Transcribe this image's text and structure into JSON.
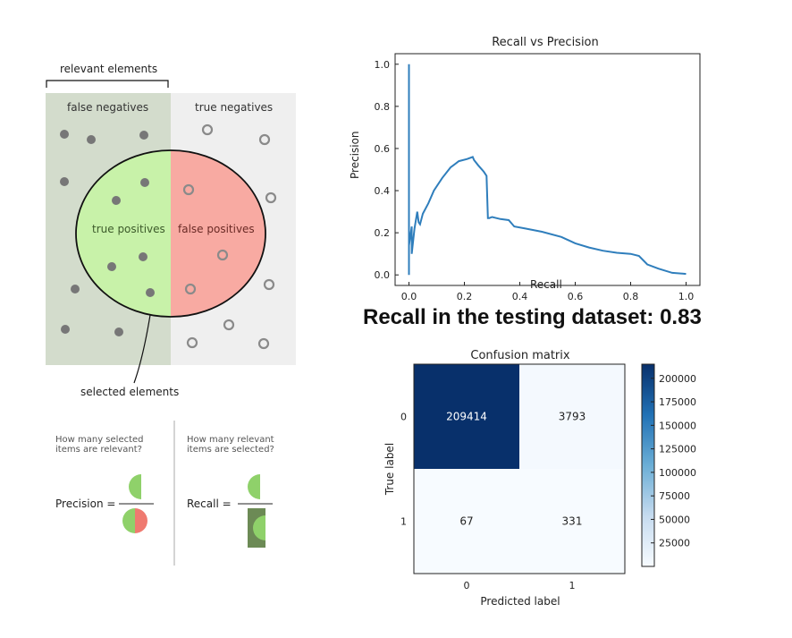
{
  "left_diagram": {
    "relevant_label": "relevant elements",
    "false_negatives": "false negatives",
    "true_negatives": "true negatives",
    "true_positives": "true positives",
    "false_positives": "false positives",
    "selected_label": "selected elements",
    "colors": {
      "relevant_bg": "#d3dccc",
      "nonrelevant_bg": "#efefef",
      "tp_fill": "#c8f2a9",
      "fp_fill": "#f8aaa2",
      "dot": "#777777",
      "ring": "#8a8a8a"
    },
    "formula": {
      "precision_question": "How many selected items are relevant?",
      "recall_question": "How many relevant items are selected?",
      "precision_label": "Precision =",
      "recall_label": "Recall ="
    }
  },
  "headline": "Recall in the testing dataset: 0.83",
  "chart_data": [
    {
      "type": "line",
      "title": "Recall vs Precision",
      "xlabel": "Recall",
      "ylabel": "Precision",
      "xlim": [
        -0.05,
        1.05
      ],
      "ylim": [
        -0.05,
        1.05
      ],
      "xticks": [
        "0.0",
        "0.2",
        "0.4",
        "0.6",
        "0.8",
        "1.0"
      ],
      "yticks": [
        "0.0",
        "0.2",
        "0.4",
        "0.6",
        "0.8",
        "1.0"
      ],
      "grid": false,
      "color": "#2f7ebc",
      "x": [
        0.0,
        0.0,
        0.0,
        0.0,
        0.01,
        0.01,
        0.02,
        0.03,
        0.035,
        0.04,
        0.05,
        0.07,
        0.09,
        0.12,
        0.15,
        0.18,
        0.21,
        0.23,
        0.235,
        0.25,
        0.27,
        0.28,
        0.285,
        0.29,
        0.3,
        0.33,
        0.36,
        0.38,
        0.42,
        0.48,
        0.55,
        0.6,
        0.65,
        0.7,
        0.75,
        0.8,
        0.83,
        0.86,
        0.9,
        0.95,
        1.0
      ],
      "y": [
        0.0,
        1.0,
        0.02,
        0.14,
        0.23,
        0.1,
        0.22,
        0.3,
        0.25,
        0.24,
        0.29,
        0.34,
        0.4,
        0.46,
        0.51,
        0.54,
        0.55,
        0.56,
        0.545,
        0.52,
        0.49,
        0.47,
        0.27,
        0.27,
        0.275,
        0.265,
        0.26,
        0.23,
        0.22,
        0.205,
        0.18,
        0.15,
        0.13,
        0.115,
        0.105,
        0.1,
        0.09,
        0.05,
        0.03,
        0.01,
        0.005
      ]
    },
    {
      "type": "heatmap",
      "title": "Confusion matrix",
      "xlabel": "Predicted label",
      "ylabel": "True label",
      "x_categories": [
        "0",
        "1"
      ],
      "y_categories": [
        "0",
        "1"
      ],
      "values": [
        [
          209414,
          3793
        ],
        [
          67,
          331
        ]
      ],
      "colorbar_ticks": [
        25000,
        50000,
        75000,
        100000,
        125000,
        150000,
        175000,
        200000
      ],
      "colorbar_tick_labels": [
        "25000",
        "50000",
        "75000",
        "100000",
        "125000",
        "150000",
        "175000",
        "200000"
      ],
      "colormap": "Blues",
      "vmin": 67,
      "vmax": 209414
    }
  ]
}
